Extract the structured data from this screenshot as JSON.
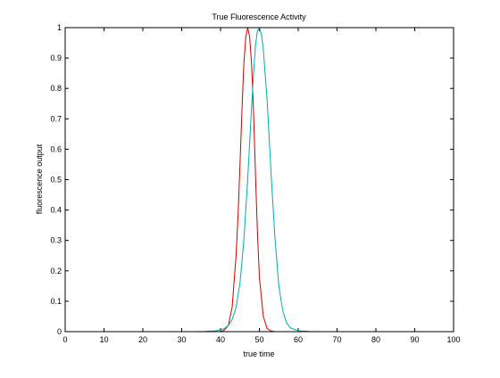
{
  "chart_data": {
    "type": "line",
    "title": "True Fluorescence Activity",
    "xlabel": "true time",
    "ylabel": "fluorescence output",
    "xlim": [
      0,
      100
    ],
    "ylim": [
      0,
      1
    ],
    "xticks": [
      0,
      10,
      20,
      30,
      40,
      50,
      60,
      70,
      80,
      90,
      100
    ],
    "yticks": [
      0,
      0.1,
      0.2,
      0.3,
      0.4,
      0.5,
      0.6,
      0.7,
      0.8,
      0.9,
      1
    ],
    "grid": false,
    "legend": "none",
    "series": [
      {
        "color": "#cc0000",
        "x": [
          40,
          41,
          42,
          43,
          44,
          44.5,
          45,
          45.5,
          46,
          46.5,
          47,
          47.5,
          48,
          48.5,
          49,
          49.5,
          50,
          51,
          52,
          53,
          54
        ],
        "y": [
          0.0,
          0.005,
          0.02,
          0.08,
          0.25,
          0.38,
          0.55,
          0.72,
          0.88,
          0.97,
          1.0,
          0.97,
          0.88,
          0.72,
          0.52,
          0.33,
          0.18,
          0.05,
          0.01,
          0.002,
          0.0
        ]
      },
      {
        "color": "#00aaaa",
        "x": [
          33,
          36,
          39,
          41,
          42,
          43,
          44,
          45,
          46,
          47,
          48,
          48.5,
          49,
          49.5,
          50,
          50.5,
          51,
          52,
          53,
          54,
          55,
          56,
          57,
          58,
          60,
          63,
          66,
          68
        ],
        "y": [
          0.0,
          0.001,
          0.003,
          0.01,
          0.02,
          0.04,
          0.08,
          0.16,
          0.3,
          0.5,
          0.74,
          0.85,
          0.94,
          0.99,
          1.0,
          0.98,
          0.93,
          0.76,
          0.52,
          0.31,
          0.15,
          0.07,
          0.03,
          0.012,
          0.003,
          0.001,
          0.0,
          0.0
        ]
      }
    ]
  }
}
